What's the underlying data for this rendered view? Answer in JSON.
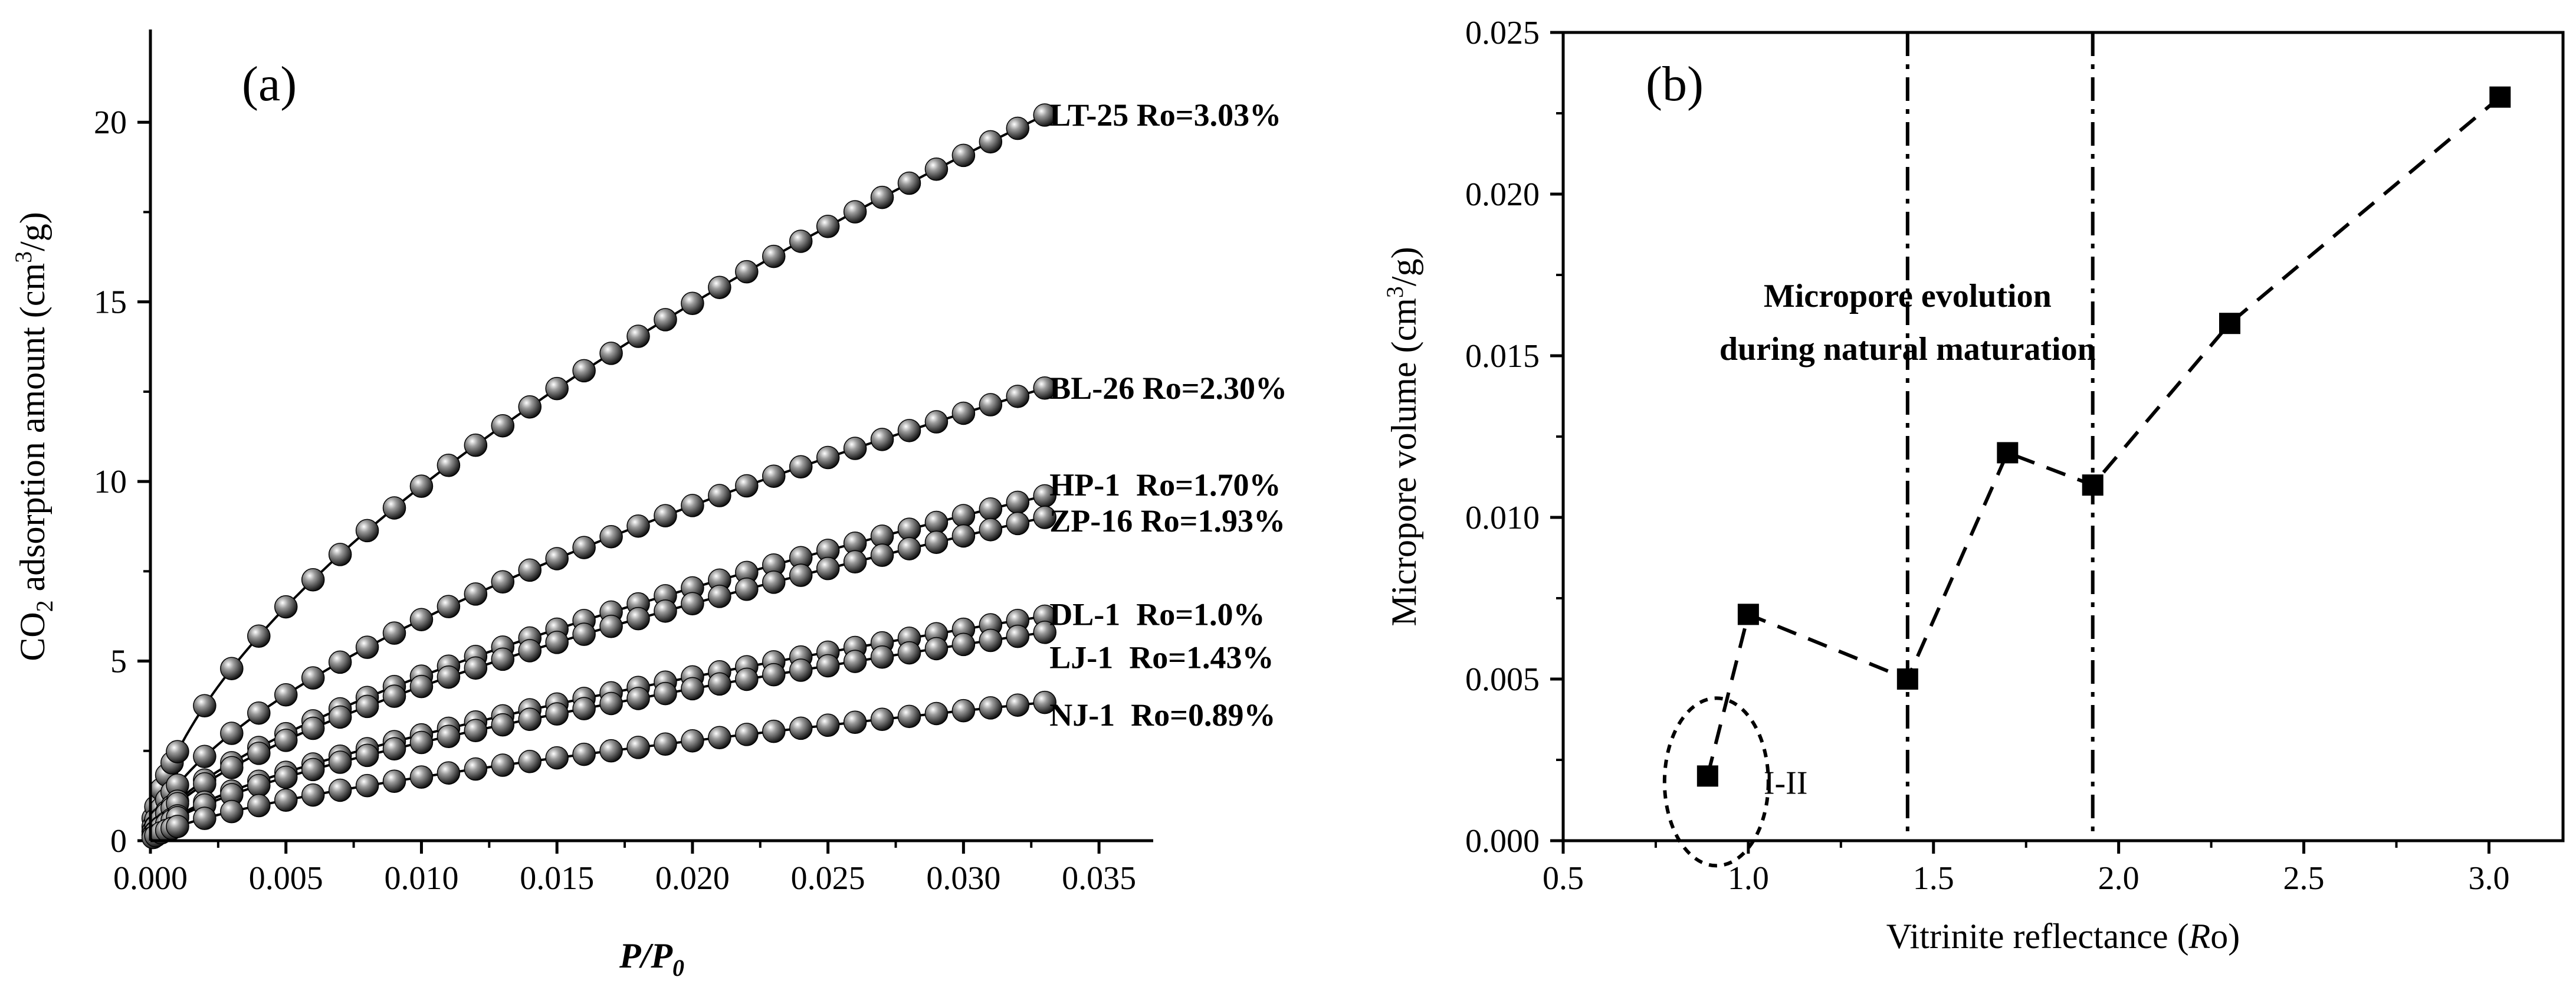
{
  "chart_data": [
    {
      "type": "line",
      "panel_label": "(a)",
      "xlabel": "P/P0",
      "ylabel": "CO2 adsorption amount (cm3/g)",
      "xlim": [
        0,
        0.037
      ],
      "ylim": [
        0,
        22.5
      ],
      "xticks": [
        {
          "v": 0,
          "label": "0.000"
        },
        {
          "v": 0.005,
          "label": "0.005"
        },
        {
          "v": 0.01,
          "label": "0.010"
        },
        {
          "v": 0.015,
          "label": "0.015"
        },
        {
          "v": 0.02,
          "label": "0.020"
        },
        {
          "v": 0.025,
          "label": "0.025"
        },
        {
          "v": 0.03,
          "label": "0.030"
        },
        {
          "v": 0.035,
          "label": "0.035"
        }
      ],
      "yticks": [
        {
          "v": 0,
          "label": "0"
        },
        {
          "v": 5,
          "label": "5"
        },
        {
          "v": 10,
          "label": "10"
        },
        {
          "v": 15,
          "label": "15"
        },
        {
          "v": 20,
          "label": "20"
        }
      ],
      "x": [
        0.0001,
        0.0002,
        0.0004,
        0.0006,
        0.0008,
        0.001,
        0.002,
        0.003,
        0.004,
        0.005,
        0.006,
        0.007,
        0.008,
        0.009,
        0.01,
        0.011,
        0.012,
        0.013,
        0.014,
        0.015,
        0.016,
        0.017,
        0.018,
        0.019,
        0.02,
        0.021,
        0.022,
        0.023,
        0.024,
        0.025,
        0.026,
        0.027,
        0.028,
        0.029,
        0.03,
        0.031,
        0.032,
        0.033
      ],
      "series": [
        {
          "name": "LT-25 Ro=3.03%",
          "end_value": 20.2,
          "shape_exponent": 0.6
        },
        {
          "name": "BL-26 Ro=2.30%",
          "end_value": 12.6,
          "shape_exponent": 0.6
        },
        {
          "name": "HP-1  Ro=1.70%",
          "end_value": 9.6,
          "shape_exponent": 0.62
        },
        {
          "name": "ZP-16 Ro=1.93%",
          "end_value": 9.0,
          "shape_exponent": 0.62
        },
        {
          "name": "DL-1  Ro=1.0%",
          "end_value": 6.25,
          "shape_exponent": 0.63
        },
        {
          "name": "LJ-1  Ro=1.43%",
          "end_value": 5.8,
          "shape_exponent": 0.63
        },
        {
          "name": "NJ-1  Ro=0.89%",
          "end_value": 3.85,
          "shape_exponent": 0.65
        }
      ]
    },
    {
      "type": "scatter",
      "panel_label": "(b)",
      "xlabel": "Vitrinite reflectance (Ro)",
      "ylabel": "Micropore volume (cm3/g)",
      "xlim": [
        0.5,
        3.2
      ],
      "ylim": [
        0,
        0.025
      ],
      "xticks": [
        {
          "v": 0.5,
          "label": "0.5"
        },
        {
          "v": 1.0,
          "label": "1.0"
        },
        {
          "v": 1.5,
          "label": "1.5"
        },
        {
          "v": 2.0,
          "label": "2.0"
        },
        {
          "v": 2.5,
          "label": "2.5"
        },
        {
          "v": 3.0,
          "label": "3.0"
        }
      ],
      "yticks": [
        {
          "v": 0,
          "label": "0.000"
        },
        {
          "v": 0.005,
          "label": "0.005"
        },
        {
          "v": 0.01,
          "label": "0.010"
        },
        {
          "v": 0.015,
          "label": "0.015"
        },
        {
          "v": 0.02,
          "label": "0.020"
        },
        {
          "v": 0.025,
          "label": "0.025"
        }
      ],
      "points": [
        {
          "x": 0.89,
          "y": 0.002
        },
        {
          "x": 1.0,
          "y": 0.007
        },
        {
          "x": 1.43,
          "y": 0.005
        },
        {
          "x": 1.7,
          "y": 0.012
        },
        {
          "x": 1.93,
          "y": 0.011
        },
        {
          "x": 2.3,
          "y": 0.016
        },
        {
          "x": 3.03,
          "y": 0.023
        }
      ],
      "vertical_lines": [
        1.43,
        1.93
      ],
      "annotation_lines": [
        "Micropore evolution",
        "during natural maturation"
      ],
      "ellipse_label": "I-II"
    }
  ]
}
